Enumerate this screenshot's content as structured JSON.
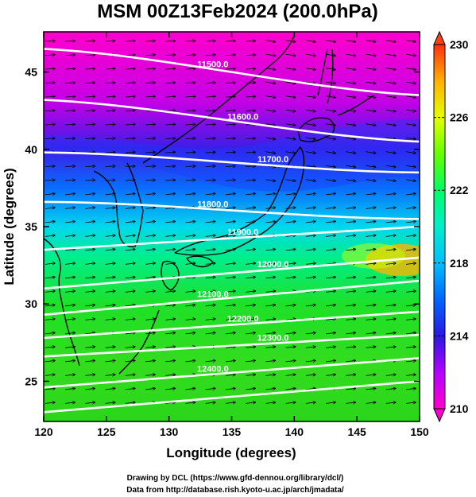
{
  "title": "MSM 00Z13Feb2024 (200.0hPa)",
  "x_axis": {
    "label": "Longitude (degrees)",
    "range": [
      120,
      150
    ],
    "ticks": [
      "120",
      "125",
      "130",
      "135",
      "140",
      "145",
      "150"
    ]
  },
  "y_axis": {
    "label": "Latitude  (degrees)",
    "range": [
      22.4,
      47.6
    ],
    "ticks": [
      "25",
      "30",
      "35",
      "40",
      "45"
    ]
  },
  "colorbar": {
    "range": [
      210,
      230
    ],
    "ticks": [
      "210",
      "214",
      "218",
      "222",
      "226",
      "230"
    ],
    "colors": [
      "#ff00cc",
      "#b400ff",
      "#2a1adf",
      "#0066ff",
      "#00e5ee",
      "#00ff66",
      "#66ff00",
      "#e6ff00",
      "#ffb000",
      "#ff3010"
    ]
  },
  "contours": [
    {
      "label": "11500.0",
      "lat_west": 46.5,
      "lat_east": 43.5
    },
    {
      "label": "11600.0",
      "lat_west": 43.2,
      "lat_east": 40.5
    },
    {
      "label": "11700.0",
      "lat_west": 39.8,
      "lat_east": 38.5
    },
    {
      "label": "11800.0",
      "lat_west": 36.6,
      "lat_east": 35.5
    },
    {
      "label": "11900.0",
      "lat_west": 33.5,
      "lat_east": 35.0
    },
    {
      "label": "12000.0",
      "lat_west": 31.0,
      "lat_east": 33.0
    },
    {
      "label": "12100.0",
      "lat_west": 29.3,
      "lat_east": 31.5
    },
    {
      "label": "12200.0",
      "lat_west": 27.8,
      "lat_east": 29.5
    },
    {
      "label": "12300.0",
      "lat_west": 26.6,
      "lat_east": 28.0
    },
    {
      "label": "12400.0",
      "lat_west": 24.6,
      "lat_east": 26.5
    },
    {
      "label": "",
      "lat_west": 23.0,
      "lat_east": 25.0
    }
  ],
  "credits": {
    "line1": "Drawing by DCL (https://www.gfd-dennou.org/library/dcl/)",
    "line2": "Data from http://database.rish.kyoto-u.ac.jp/arch/jmadata/"
  }
}
